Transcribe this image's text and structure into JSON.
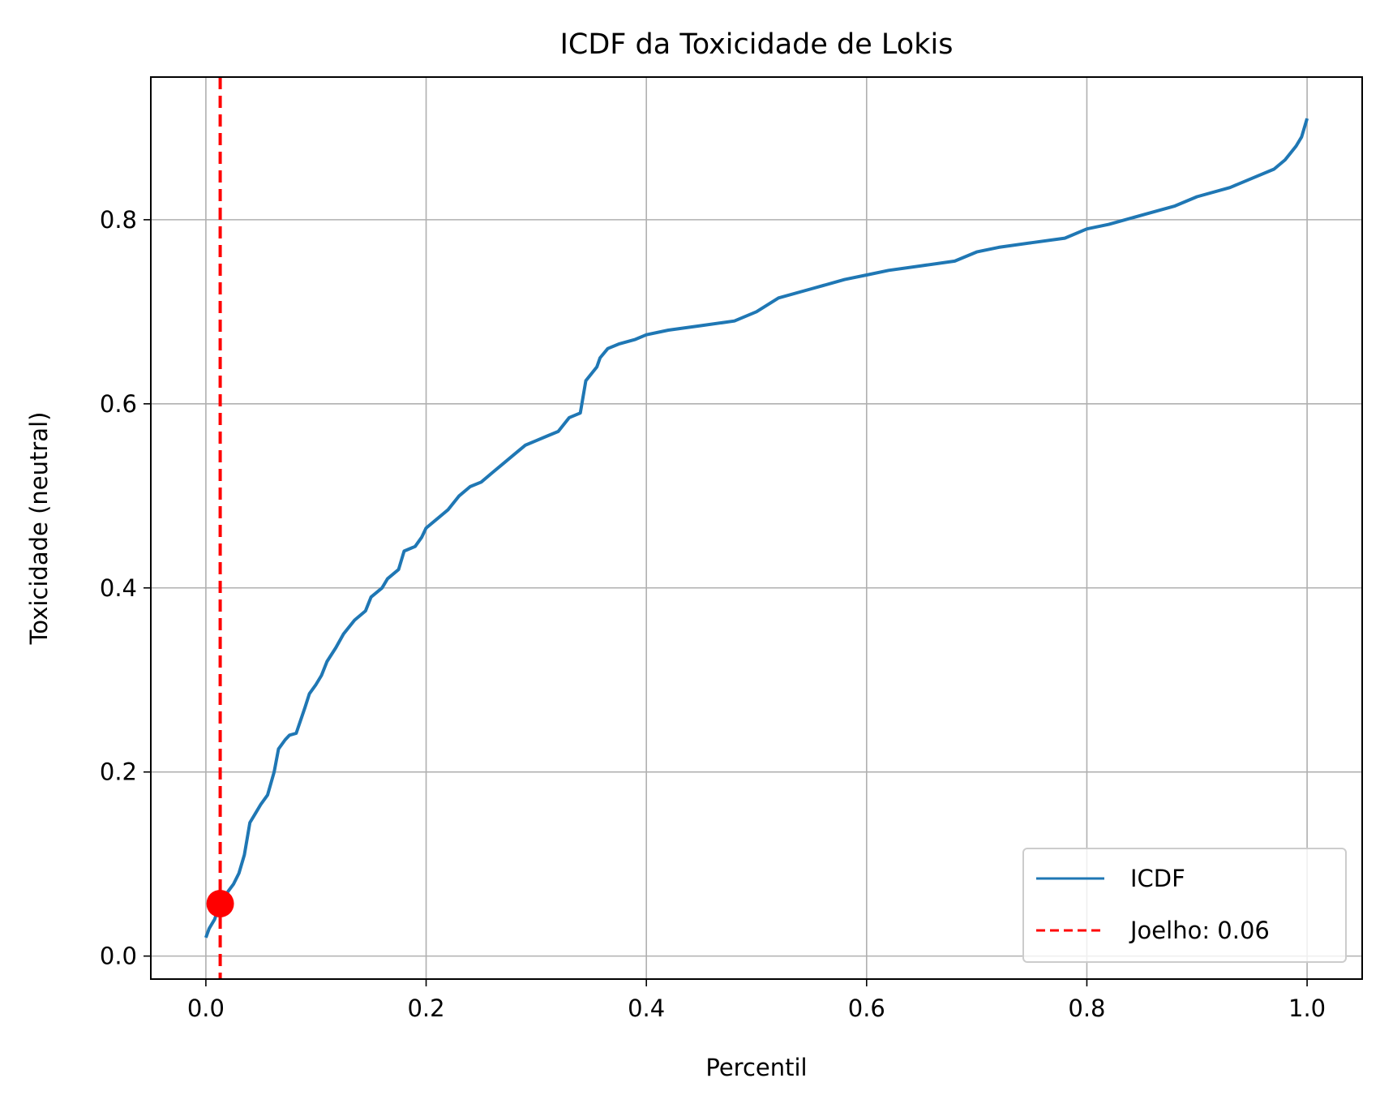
{
  "chart_data": {
    "type": "line",
    "title": "ICDF da Toxicidade de Lokis",
    "xlabel": "Percentil",
    "ylabel": "Toxicidade (neutral)",
    "xlim": [
      -0.05,
      1.05
    ],
    "ylim": [
      -0.025,
      0.955
    ],
    "xticks": [
      0.0,
      0.2,
      0.4,
      0.6,
      0.8,
      1.0
    ],
    "xtick_labels": [
      "0.0",
      "0.2",
      "0.4",
      "0.6",
      "0.8",
      "1.0"
    ],
    "yticks": [
      0.0,
      0.2,
      0.4,
      0.6,
      0.8
    ],
    "ytick_labels": [
      "0.0",
      "0.2",
      "0.4",
      "0.6",
      "0.8"
    ],
    "grid": true,
    "legend_position": "lower-right",
    "colors": {
      "icdf": "#1f77b4",
      "knee": "#ff0000",
      "grid": "#b0b0b0"
    },
    "series": [
      {
        "name": "ICDF",
        "style": "solid",
        "x": [
          0.0,
          0.003,
          0.008,
          0.012,
          0.016,
          0.02,
          0.025,
          0.03,
          0.035,
          0.04,
          0.045,
          0.05,
          0.056,
          0.062,
          0.066,
          0.072,
          0.076,
          0.082,
          0.09,
          0.094,
          0.1,
          0.105,
          0.11,
          0.118,
          0.125,
          0.135,
          0.145,
          0.15,
          0.16,
          0.165,
          0.175,
          0.18,
          0.19,
          0.196,
          0.2,
          0.21,
          0.22,
          0.23,
          0.24,
          0.25,
          0.26,
          0.27,
          0.28,
          0.29,
          0.3,
          0.31,
          0.32,
          0.33,
          0.34,
          0.345,
          0.355,
          0.358,
          0.365,
          0.375,
          0.39,
          0.4,
          0.42,
          0.45,
          0.48,
          0.5,
          0.52,
          0.55,
          0.58,
          0.6,
          0.62,
          0.65,
          0.68,
          0.7,
          0.72,
          0.75,
          0.78,
          0.8,
          0.82,
          0.85,
          0.88,
          0.9,
          0.93,
          0.95,
          0.97,
          0.98,
          0.99,
          0.995,
          1.0
        ],
        "y": [
          0.02,
          0.03,
          0.04,
          0.055,
          0.06,
          0.07,
          0.078,
          0.09,
          0.11,
          0.145,
          0.155,
          0.165,
          0.175,
          0.2,
          0.225,
          0.235,
          0.24,
          0.242,
          0.27,
          0.285,
          0.295,
          0.305,
          0.32,
          0.335,
          0.35,
          0.365,
          0.375,
          0.39,
          0.4,
          0.41,
          0.42,
          0.44,
          0.445,
          0.455,
          0.465,
          0.475,
          0.485,
          0.5,
          0.51,
          0.515,
          0.525,
          0.535,
          0.545,
          0.555,
          0.56,
          0.565,
          0.57,
          0.585,
          0.59,
          0.625,
          0.64,
          0.65,
          0.66,
          0.665,
          0.67,
          0.675,
          0.68,
          0.685,
          0.69,
          0.7,
          0.715,
          0.725,
          0.735,
          0.74,
          0.745,
          0.75,
          0.755,
          0.765,
          0.77,
          0.775,
          0.78,
          0.79,
          0.795,
          0.805,
          0.815,
          0.825,
          0.835,
          0.845,
          0.855,
          0.865,
          0.88,
          0.89,
          0.91
        ]
      },
      {
        "name": "Joelho: 0.06",
        "style": "dashed-vertical",
        "x": 0.013
      }
    ],
    "knee_point": {
      "x": 0.013,
      "y": 0.057
    }
  }
}
